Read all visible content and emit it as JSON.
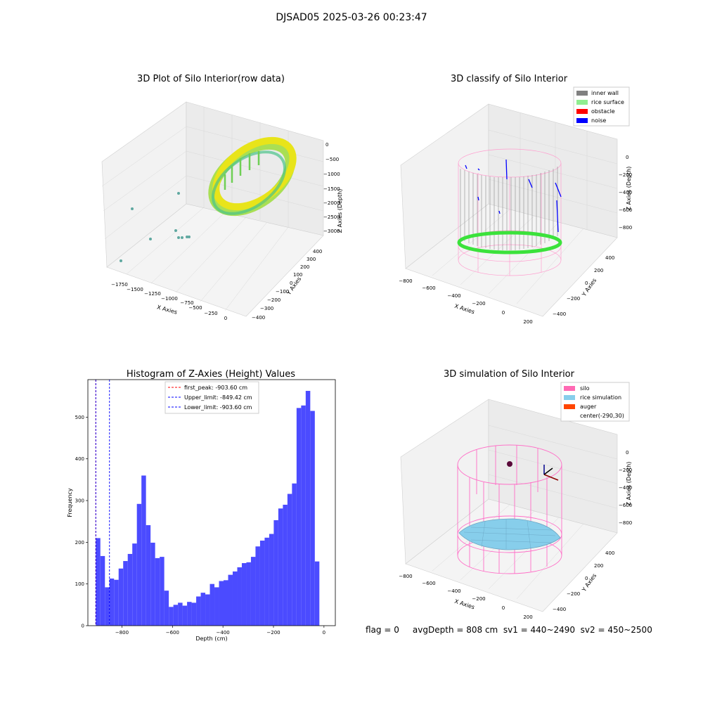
{
  "figure": {
    "suptitle": "DJSAD05 2025-03-26 00:23:47",
    "footer": "flag = 0     avgDepth = 808 cm  sv1 = 440~2490  sv2 = 450~2500"
  },
  "panels": {
    "raw": {
      "title": "3D Plot of Silo Interior(row data)",
      "xlabel": "X Axies",
      "ylabel": "Y Axies",
      "zlabel": "Z Axies (Depth)",
      "xticks": [
        "−1750",
        "−1500",
        "−1250",
        "−1000",
        "−750",
        "−500",
        "−250",
        "0"
      ],
      "yticks": [
        "−400",
        "−300",
        "−200",
        "−100",
        "0",
        "100",
        "200",
        "300",
        "400"
      ],
      "zticks": [
        "0",
        "−500",
        "−1000",
        "−1500",
        "−2000",
        "−2500",
        "−3000"
      ]
    },
    "classify": {
      "title": "3D classify of Silo Interior",
      "xlabel": "X Axies",
      "ylabel": "Y Axies",
      "zlabel": "Z Axies (Depth)",
      "xticks": [
        "−800",
        "−600",
        "−400",
        "−200",
        "0",
        "200"
      ],
      "yticks": [
        "−400",
        "−200",
        "0",
        "200",
        "400"
      ],
      "zticks": [
        "0",
        "−200",
        "−400",
        "−600",
        "−800"
      ],
      "legend": [
        {
          "label": "inner wall",
          "color": "#808080"
        },
        {
          "label": "rice surface",
          "color": "#90ee90"
        },
        {
          "label": "obstacle",
          "color": "#ff0000"
        },
        {
          "label": "noise",
          "color": "#0000ff"
        }
      ]
    },
    "simulation": {
      "title": "3D simulation of Silo Interior",
      "xlabel": "X Axies",
      "ylabel": "Y Axies",
      "zlabel": "Z Axies (Depth)",
      "xticks": [
        "−800",
        "−600",
        "−400",
        "−200",
        "0",
        "200"
      ],
      "yticks": [
        "−400",
        "−200",
        "0",
        "200",
        "400"
      ],
      "zticks": [
        "0",
        "−200",
        "−400",
        "−600",
        "−800"
      ],
      "legend": [
        {
          "label": "silo",
          "color": "#ff69b4"
        },
        {
          "label": "rice simulation",
          "color": "#87ceeb"
        },
        {
          "label": "auger",
          "color": "#ff4500"
        },
        {
          "label": "center(-290,30)",
          "color": ""
        }
      ]
    }
  },
  "chart_data": [
    {
      "type": "histogram",
      "title": "Histogram of Z-Axies (Height) Values",
      "xlabel": "Depth (cm)",
      "ylabel": "Frequency",
      "xlim": [
        -935,
        45
      ],
      "ylim": [
        0,
        590
      ],
      "xticks": [
        -800,
        -600,
        -400,
        -200,
        0
      ],
      "yticks": [
        0,
        100,
        200,
        300,
        400,
        500
      ],
      "bar_color": "#4b4bff",
      "bin_start": -903.6,
      "bin_width": 18.07,
      "counts": [
        210,
        167,
        92,
        113,
        110,
        137,
        155,
        172,
        197,
        292,
        360,
        241,
        199,
        162,
        165,
        84,
        45,
        50,
        55,
        48,
        57,
        55,
        70,
        79,
        75,
        100,
        92,
        107,
        109,
        122,
        130,
        140,
        150,
        152,
        165,
        190,
        204,
        211,
        220,
        253,
        281,
        290,
        316,
        341,
        522,
        528,
        563,
        515,
        154
      ],
      "vlines": [
        {
          "label": "first_peak: -903.60 cm",
          "x": -903.6,
          "color": "#ff0000"
        },
        {
          "label": "Upper_limit: -849.42 cm",
          "x": -849.42,
          "color": "#0000ff"
        },
        {
          "label": "Lower_limit: -903.60 cm",
          "x": -903.6,
          "color": "#0000ff"
        }
      ]
    }
  ]
}
